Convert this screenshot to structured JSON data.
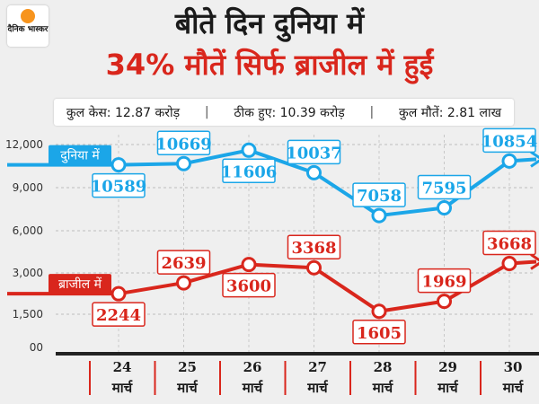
{
  "brand": {
    "logo_text": "दैनिक भास्कर"
  },
  "headline": {
    "line1": "बीते दिन दुनिया में",
    "line2": "34% मौतें सिर्फ ब्राजील में हुईं"
  },
  "stats": {
    "total_cases": "कुल केस: 12.87 करोड़",
    "recovered": "ठीक हुए: 10.39 करोड़",
    "total_deaths": "कुल मौतें: 2.81 लाख",
    "separator": "|"
  },
  "colors": {
    "world": "#1ba6e8",
    "brazil": "#d9261c",
    "accent": "#d9261c"
  },
  "chart_data": {
    "type": "line",
    "categories": [
      "24 मार्च",
      "25 मार्च",
      "26 मार्च",
      "27 मार्च",
      "28 मार्च",
      "29 मार्च",
      "30 मार्च"
    ],
    "x_day": [
      "24",
      "25",
      "26",
      "27",
      "28",
      "29",
      "30"
    ],
    "x_month": "मार्च",
    "y_ticks": [
      "00",
      "1,500",
      "3,000",
      "6,000",
      "9,000",
      "12,000"
    ],
    "series": [
      {
        "name": "दुनिया में",
        "values": [
          10589,
          10669,
          11606,
          10037,
          7058,
          7595,
          10854
        ],
        "color": "#1ba6e8"
      },
      {
        "name": "ब्राजील में",
        "values": [
          2244,
          2639,
          3600,
          3368,
          1605,
          1969,
          3668
        ],
        "color": "#d9261c"
      }
    ],
    "grid": true
  }
}
